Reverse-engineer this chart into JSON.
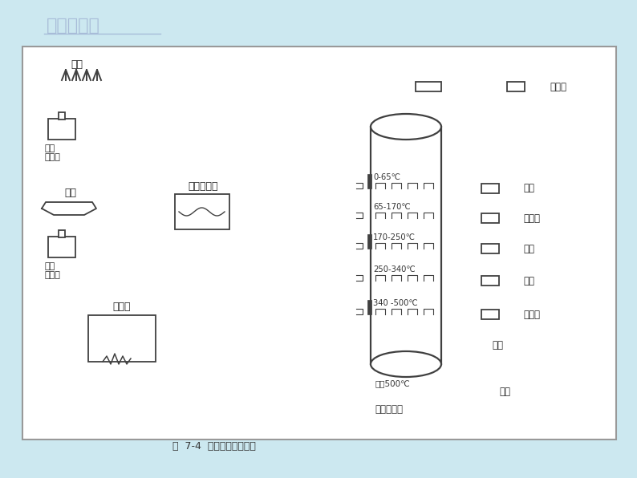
{
  "title": "石油的炼制",
  "bg_color": "#cce8f0",
  "line_color": "#404040",
  "caption": "图  7-4  石油的蒸馏和产品",
  "bubble_label": "泡罩的断面",
  "boiling_label": "沸点的范围",
  "panel_bg": "#ffffff"
}
